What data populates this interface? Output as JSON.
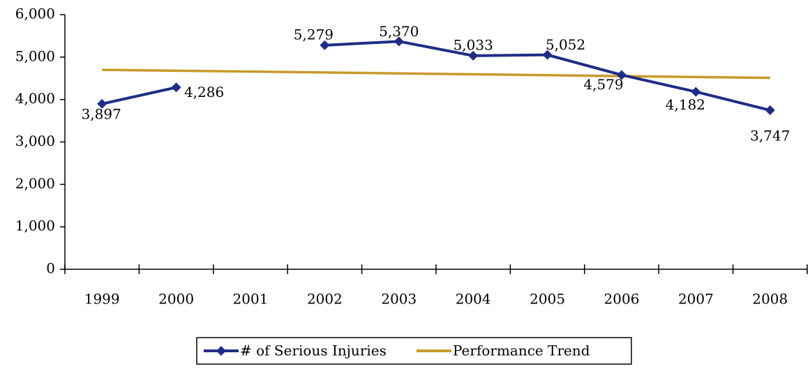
{
  "chart_data": {
    "type": "line",
    "categories": [
      "1999",
      "2000",
      "2001",
      "2002",
      "2003",
      "2004",
      "2005",
      "2006",
      "2007",
      "2008"
    ],
    "series": [
      {
        "name": "# of Serious Injuries",
        "color": "#1f2d86",
        "values": [
          3897,
          4286,
          null,
          5279,
          5370,
          5033,
          5052,
          4579,
          4182,
          3747
        ],
        "value_labels": [
          "3,897",
          "4,286",
          null,
          "5,279",
          "5,370",
          "5,033",
          "5,052",
          "4,579",
          "4,182",
          "3,747"
        ]
      },
      {
        "name": "Performance Trend",
        "color": "#c79a2b",
        "values": [
          4700,
          4679,
          4658,
          4637,
          4616,
          4594,
          4573,
          4552,
          4531,
          4510
        ]
      }
    ],
    "ylim": [
      0,
      6000
    ],
    "yticks": [
      0,
      {
        "value": 1000,
        "label": "1,000"
      },
      {
        "value": 2000,
        "label": "2,000"
      },
      {
        "value": 3000,
        "label": "3,000"
      },
      {
        "value": 4000,
        "label": "4,000"
      },
      {
        "value": 5000,
        "label": "5,000"
      },
      {
        "value": 6000,
        "label": "6,000"
      }
    ],
    "legend": "bottom"
  }
}
